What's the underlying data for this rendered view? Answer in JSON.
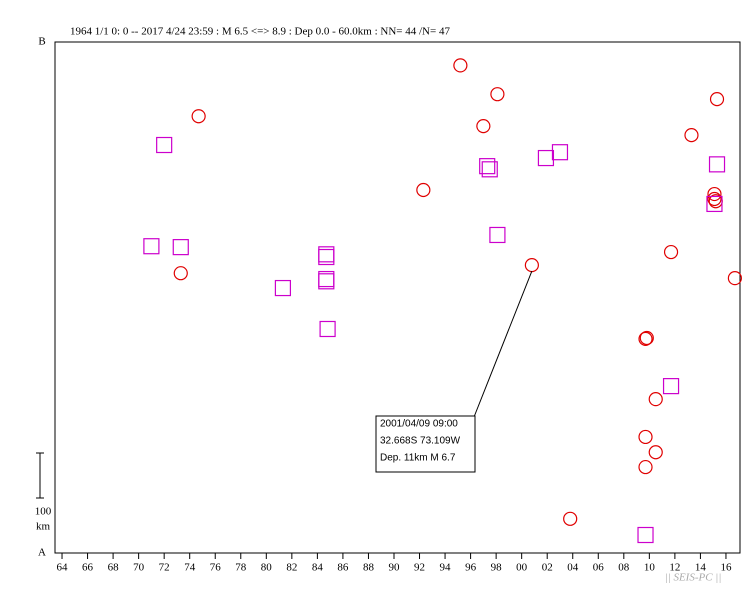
{
  "chart_data": {
    "type": "scatter",
    "title": "1964 1/1 0: 0 -- 2017 4/24 23:59  : M 6.5 <=> 8.9   : Dep 0.0 - 60.0km :  NN= 44 /N= 47",
    "bottom_label": "A",
    "top_label": "B",
    "scale_bar": {
      "value": 100,
      "label": "100",
      "unit": "km"
    },
    "watermark": "|| SEIS-PC ||",
    "annotation": [
      "2001/04/09 09:00",
      "32.668S  73.109W",
      "Dep. 11km    M 6.7"
    ],
    "xlim": [
      1963.45,
      2017.1
    ],
    "ylim": [
      0,
      1136
    ],
    "xticks": [
      {
        "value": 1964,
        "label": "64"
      },
      {
        "value": 1966,
        "label": "66"
      },
      {
        "value": 1968,
        "label": "68"
      },
      {
        "value": 1970,
        "label": "70"
      },
      {
        "value": 1972,
        "label": "72"
      },
      {
        "value": 1974,
        "label": "74"
      },
      {
        "value": 1976,
        "label": "76"
      },
      {
        "value": 1978,
        "label": "78"
      },
      {
        "value": 1980,
        "label": "80"
      },
      {
        "value": 1982,
        "label": "82"
      },
      {
        "value": 1984,
        "label": "84"
      },
      {
        "value": 1986,
        "label": "86"
      },
      {
        "value": 1988,
        "label": "88"
      },
      {
        "value": 1990,
        "label": "90"
      },
      {
        "value": 1992,
        "label": "92"
      },
      {
        "value": 1994,
        "label": "94"
      },
      {
        "value": 1996,
        "label": "96"
      },
      {
        "value": 1998,
        "label": "98"
      },
      {
        "value": 2000,
        "label": "00"
      },
      {
        "value": 2002,
        "label": "02"
      },
      {
        "value": 2004,
        "label": "04"
      },
      {
        "value": 2006,
        "label": "06"
      },
      {
        "value": 2008,
        "label": "08"
      },
      {
        "value": 2010,
        "label": "10"
      },
      {
        "value": 2012,
        "label": "12"
      },
      {
        "value": 2014,
        "label": "14"
      },
      {
        "value": 2016,
        "label": "16"
      }
    ],
    "series": [
      {
        "marker": "circle",
        "color": "#e00000",
        "x": [
          1974.7,
          1973.3,
          1992.3,
          1995.2,
          1998.1,
          1997.0,
          2000.8,
          2015.3,
          2013.3,
          2015.1,
          2015.1,
          2015.2,
          2011.7,
          2016.7,
          2009.7,
          2009.8,
          2010.5,
          2009.7,
          2010.5,
          2009.7,
          2003.8
        ],
        "values": [
          971,
          622,
          807,
          1084,
          1020,
          949,
          640,
          1009,
          929,
          798,
          787,
          782,
          669,
          611,
          476,
          478,
          342,
          258,
          224,
          191,
          76
        ]
      },
      {
        "marker": "square",
        "color": "#cc00cc",
        "x": [
          1972.0,
          1971.0,
          1973.3,
          1981.3,
          1984.7,
          1984.7,
          1984.7,
          1984.7,
          1984.8,
          1997.3,
          1997.5,
          1998.1,
          2001.9,
          2003.0,
          2015.3,
          2015.1,
          2011.7,
          2009.7
        ],
        "values": [
          907,
          682,
          680,
          589,
          664,
          658,
          609,
          604,
          498,
          860,
          853,
          707,
          878,
          891,
          864,
          776,
          371,
          40
        ]
      }
    ]
  }
}
